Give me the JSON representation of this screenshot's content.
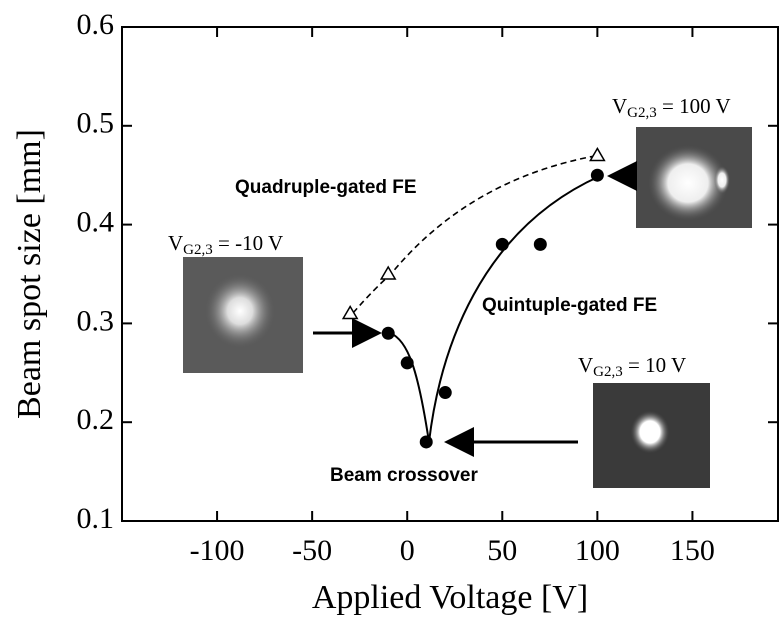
{
  "chart_data": {
    "type": "scatter",
    "x_label": "Applied Voltage [V]",
    "y_label": "Beam spot size [mm]",
    "xlim": [
      -150,
      195
    ],
    "ylim": [
      0.1,
      0.6
    ],
    "xticks": [
      -100,
      -50,
      0,
      50,
      100,
      150
    ],
    "yticks": [
      0.1,
      0.2,
      0.3,
      0.4,
      0.5,
      0.6
    ],
    "series": [
      {
        "name": "Quintuple-gated FE",
        "marker": "circle",
        "color": "#000000",
        "x": [
          -10,
          0,
          10,
          20,
          50,
          70,
          100
        ],
        "values": [
          0.29,
          0.26,
          0.18,
          0.23,
          0.38,
          0.38,
          0.45
        ]
      },
      {
        "name": "Quadruple-gated FE",
        "marker": "triangle",
        "color": "#000000",
        "x": [
          -30,
          -10,
          100
        ],
        "values": [
          0.31,
          0.35,
          0.47
        ]
      }
    ],
    "annotations": [
      "Beam crossover"
    ],
    "image_labels": [
      {
        "main": "V",
        "sub": "G2,3",
        "rest": " = -10 V"
      },
      {
        "main": "V",
        "sub": "G2,3",
        "rest": " = 100 V"
      },
      {
        "main": "V",
        "sub": "G2,3",
        "rest": " = 10 V"
      }
    ]
  }
}
